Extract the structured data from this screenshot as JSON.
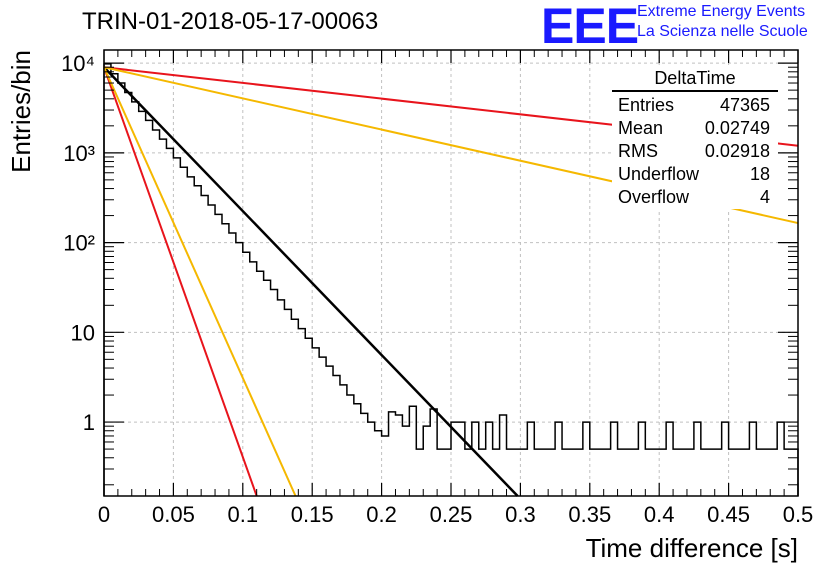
{
  "header": {
    "run_title": "TRIN-01-2018-05-17-00063",
    "logo_text": "EEE",
    "logo_line1": "Extreme Energy Events",
    "logo_line2": "La Scienza nelle Scuole"
  },
  "stats_box": {
    "title": "DeltaTime",
    "rows": [
      {
        "label": "Entries",
        "value": "47365"
      },
      {
        "label": "Mean",
        "value": "0.02749"
      },
      {
        "label": "RMS",
        "value": "0.02918"
      },
      {
        "label": "Underflow",
        "value": "18"
      },
      {
        "label": "Overflow",
        "value": "4"
      }
    ]
  },
  "colors": {
    "histogram": "#000000",
    "black_fit": "#000000",
    "red": "#e8141c",
    "orange": "#f5b800",
    "grid": "#c0c0c0",
    "logo": "#1a1aff"
  },
  "chart_data": {
    "type": "line",
    "title": "TRIN-01-2018-05-17-00063",
    "xlabel": "Time difference [s]",
    "ylabel": "Entries/bin",
    "xlim": [
      0,
      0.5
    ],
    "ylim": [
      0.15,
      14000
    ],
    "y_scale": "log",
    "grid": true,
    "x_ticks": [
      "0",
      "0.05",
      "0.1",
      "0.15",
      "0.2",
      "0.25",
      "0.3",
      "0.35",
      "0.4",
      "0.45",
      "0.5"
    ],
    "y_ticks": [
      {
        "value": 1,
        "label": "1"
      },
      {
        "value": 10,
        "label": "10"
      },
      {
        "value": 100,
        "label": "10²"
      },
      {
        "value": 1000,
        "label": "10³"
      },
      {
        "value": 10000,
        "label": "10⁴"
      }
    ],
    "histogram": {
      "bin_width": 0.005,
      "values": [
        9800,
        7600,
        6000,
        4700,
        3700,
        2900,
        2300,
        1800,
        1420,
        1120,
        880,
        690,
        540,
        430,
        335,
        262,
        206,
        162,
        128,
        100,
        78,
        61,
        48,
        38,
        30,
        23,
        18,
        14,
        11,
        8.6,
        6.7,
        5.3,
        4.2,
        3.3,
        2.6,
        2.0,
        1.6,
        1.25,
        1,
        0.8,
        0.7,
        1.3,
        1.2,
        0.9,
        1.5,
        0.5,
        0.9,
        1.4,
        0.5,
        0.5,
        1,
        1,
        0.5,
        1,
        0.5,
        1,
        0.5,
        1.2,
        0.5,
        0.5,
        0.5,
        1,
        0.5,
        0.5,
        0.5,
        1,
        0.5,
        0.5,
        0.5,
        1,
        0.5,
        0.5,
        0.5,
        1,
        0.5,
        0.5,
        0.5,
        1,
        0.5,
        0.5,
        0.5,
        1,
        0.5,
        0.5,
        0.5,
        1,
        0.5,
        0.5,
        0.5,
        1,
        0.5,
        0.5,
        0.5,
        1,
        0.5,
        0.5,
        0.5,
        1,
        0.5,
        0.5
      ],
      "displayed": [
        [
          0.0,
          0.005,
          9800
        ],
        [
          0.005,
          0.01,
          7600
        ],
        [
          0.01,
          0.015,
          6000
        ],
        [
          0.015,
          0.02,
          4700
        ],
        [
          0.02,
          0.025,
          3700
        ],
        [
          0.025,
          0.03,
          2900
        ],
        [
          0.03,
          0.035,
          2300
        ],
        [
          0.035,
          0.04,
          1800
        ],
        [
          0.04,
          0.045,
          1420
        ],
        [
          0.045,
          0.05,
          1120
        ],
        [
          0.05,
          0.055,
          880
        ],
        [
          0.055,
          0.06,
          690
        ],
        [
          0.06,
          0.065,
          540
        ],
        [
          0.065,
          0.07,
          430
        ],
        [
          0.07,
          0.075,
          335
        ],
        [
          0.075,
          0.08,
          262
        ],
        [
          0.08,
          0.085,
          206
        ],
        [
          0.085,
          0.09,
          162
        ],
        [
          0.09,
          0.095,
          128
        ],
        [
          0.095,
          0.1,
          100
        ],
        [
          0.1,
          0.105,
          78
        ],
        [
          0.105,
          0.11,
          61
        ],
        [
          0.11,
          0.115,
          48
        ],
        [
          0.115,
          0.12,
          38
        ],
        [
          0.12,
          0.125,
          30
        ],
        [
          0.125,
          0.13,
          23
        ],
        [
          0.13,
          0.135,
          18
        ],
        [
          0.135,
          0.14,
          14
        ],
        [
          0.14,
          0.145,
          11
        ],
        [
          0.145,
          0.15,
          8.6
        ],
        [
          0.15,
          0.155,
          6.7
        ],
        [
          0.155,
          0.16,
          5.3
        ],
        [
          0.16,
          0.165,
          4.2
        ],
        [
          0.165,
          0.17,
          3.3
        ],
        [
          0.17,
          0.175,
          2.6
        ],
        [
          0.175,
          0.18,
          2.0
        ]
      ]
    },
    "series": [
      {
        "color": "#000000",
        "x": [
          0,
          0.298
        ],
        "y": [
          9000,
          0.15
        ]
      },
      {
        "color": "#e8141c",
        "x": [
          0,
          0.5
        ],
        "y": [
          9000,
          1200
        ]
      },
      {
        "color": "#e8141c",
        "x": [
          0,
          0.11
        ],
        "y": [
          9000,
          0.15
        ]
      },
      {
        "color": "#f5b800",
        "x": [
          0,
          0.5
        ],
        "y": [
          9000,
          165
        ]
      },
      {
        "color": "#f5b800",
        "x": [
          0,
          0.138
        ],
        "y": [
          9000,
          0.15
        ]
      }
    ]
  }
}
